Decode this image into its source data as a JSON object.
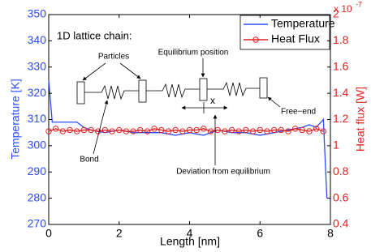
{
  "chart_data": {
    "type": "line",
    "x_label": "Length [nm]",
    "y_label": "Temperature [K]",
    "y2_label": "Heat flux [W]",
    "y2_scale_label": "x 10",
    "y2_scale_exponent": "-7",
    "xlim": [
      0,
      8
    ],
    "xticks": [
      0,
      2,
      4,
      6,
      8
    ],
    "ylim": [
      270,
      350
    ],
    "yticks": [
      270,
      280,
      290,
      300,
      310,
      320,
      330,
      340,
      350
    ],
    "y2lim": [
      0.4,
      2
    ],
    "y2ticks": [
      0.4,
      0.6,
      0.8,
      1,
      1.2,
      1.4,
      1.6,
      1.8,
      2
    ],
    "legend": "upper right",
    "annotations": [
      "1D lattice chain:",
      "Particles",
      "Equilibrium position",
      "Free−end",
      "Bond",
      "x",
      "Deviation from equilibrium"
    ],
    "series": [
      {
        "name": "Temperature",
        "color": "#2b4cff",
        "marker": "none",
        "x": [
          0,
          0.1,
          0.4,
          0.8,
          1.0,
          1.2,
          1.6,
          2.0,
          2.4,
          2.8,
          3.2,
          3.6,
          4.0,
          4.4,
          4.8,
          5.2,
          5.6,
          6.0,
          6.4,
          6.8,
          7.2,
          7.4,
          7.6,
          7.8,
          7.9
        ],
        "values": [
          325,
          309,
          309,
          309,
          307,
          306,
          305,
          306,
          305,
          305,
          305,
          304,
          305,
          304,
          306,
          305,
          305,
          304,
          305,
          306,
          307,
          308,
          307,
          310,
          280
        ]
      },
      {
        "name": "Heat Flux",
        "color": "#e02020",
        "marker": "circle",
        "axis": "y2",
        "x": [
          0,
          0.2,
          0.4,
          0.6,
          0.8,
          1.0,
          1.2,
          1.4,
          1.6,
          1.8,
          2.0,
          2.2,
          2.4,
          2.6,
          2.8,
          3.0,
          3.2,
          3.4,
          3.6,
          3.8,
          4.0,
          4.2,
          4.4,
          4.6,
          4.8,
          5.0,
          5.2,
          5.4,
          5.6,
          5.8,
          6.0,
          6.2,
          6.4,
          6.6,
          6.8,
          7.0,
          7.2,
          7.4,
          7.6,
          7.8
        ],
        "values": [
          1.11,
          1.13,
          1.11,
          1.12,
          1.11,
          1.12,
          1.12,
          1.11,
          1.12,
          1.11,
          1.12,
          1.11,
          1.11,
          1.12,
          1.11,
          1.13,
          1.12,
          1.11,
          1.12,
          1.11,
          1.12,
          1.12,
          1.13,
          1.11,
          1.12,
          1.11,
          1.12,
          1.11,
          1.12,
          1.11,
          1.12,
          1.11,
          1.12,
          1.12,
          1.11,
          1.13,
          1.12,
          1.11,
          1.13,
          1.11
        ]
      }
    ]
  }
}
